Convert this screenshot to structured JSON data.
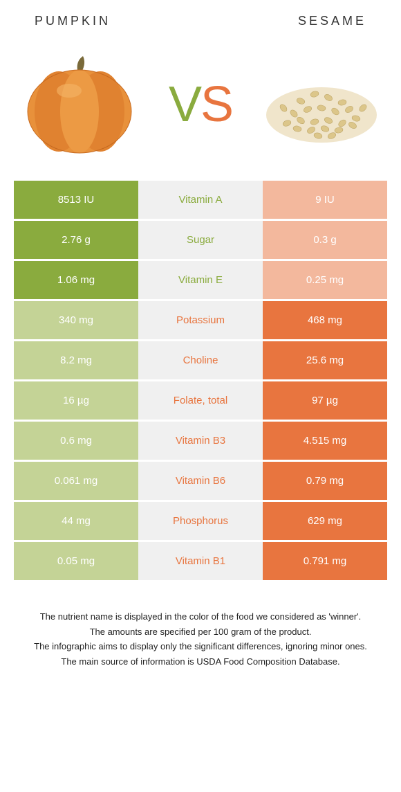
{
  "colors": {
    "pumpkin_main": "#8aab3e",
    "pumpkin_light": "#c4d396",
    "sesame_main": "#e8753f",
    "sesame_light": "#f3b89d",
    "mid_bg": "#f0f0f0"
  },
  "header": {
    "left_title": "PUMPKIN",
    "right_title": "SESAME"
  },
  "vs": {
    "v": "V",
    "s": "S"
  },
  "rows": [
    {
      "left": "8513 IU",
      "label": "Vitamin A",
      "right": "9 IU",
      "winner": "pumpkin"
    },
    {
      "left": "2.76 g",
      "label": "Sugar",
      "right": "0.3 g",
      "winner": "pumpkin"
    },
    {
      "left": "1.06 mg",
      "label": "Vitamin E",
      "right": "0.25 mg",
      "winner": "pumpkin"
    },
    {
      "left": "340 mg",
      "label": "Potassium",
      "right": "468 mg",
      "winner": "sesame"
    },
    {
      "left": "8.2 mg",
      "label": "Choline",
      "right": "25.6 mg",
      "winner": "sesame"
    },
    {
      "left": "16 µg",
      "label": "Folate, total",
      "right": "97 µg",
      "winner": "sesame"
    },
    {
      "left": "0.6 mg",
      "label": "Vitamin B3",
      "right": "4.515 mg",
      "winner": "sesame"
    },
    {
      "left": "0.061 mg",
      "label": "Vitamin B6",
      "right": "0.79 mg",
      "winner": "sesame"
    },
    {
      "left": "44 mg",
      "label": "Phosphorus",
      "right": "629 mg",
      "winner": "sesame"
    },
    {
      "left": "0.05 mg",
      "label": "Vitamin B1",
      "right": "0.791 mg",
      "winner": "sesame"
    }
  ],
  "footnotes": [
    "The nutrient name is displayed in the color of the food we considered as 'winner'.",
    "The amounts are specified per 100 gram of the product.",
    "The infographic aims to display only the significant differences, ignoring minor ones.",
    "The main source of information is USDA Food Composition Database."
  ]
}
